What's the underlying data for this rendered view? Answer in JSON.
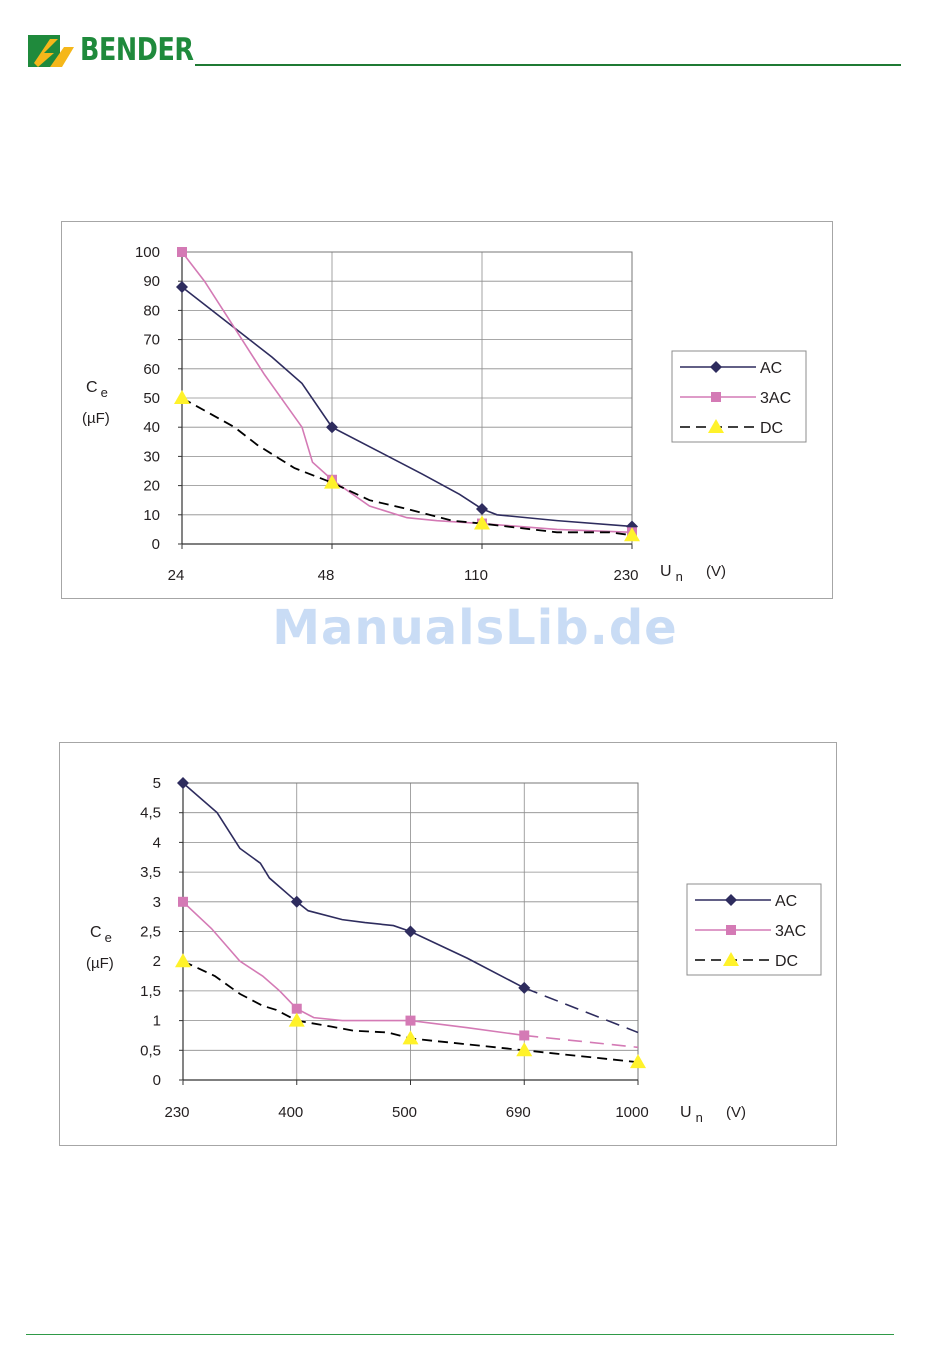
{
  "header": {
    "brand": "BENDER"
  },
  "watermark": "ManualsLib.de",
  "chart_data": [
    {
      "type": "line",
      "x": [
        "24",
        "48",
        "110",
        "230"
      ],
      "ylabel": "C e",
      "yunit": "(µF)",
      "xlabel": "U n",
      "xunit": "(V)",
      "ylim": [
        0,
        100
      ],
      "yticks": [
        "0",
        "10",
        "20",
        "30",
        "40",
        "50",
        "60",
        "70",
        "80",
        "90",
        "100"
      ],
      "grid": true,
      "legend_position": "right",
      "series": [
        {
          "name": "AC",
          "marker": "diamond",
          "color": "#2e2c5e",
          "dash": "solid",
          "values": [
            88,
            40,
            12,
            6
          ],
          "curve": [
            [
              0,
              88
            ],
            [
              0.2,
              80
            ],
            [
              0.4,
              72
            ],
            [
              0.6,
              64
            ],
            [
              0.8,
              55
            ],
            [
              1,
              40
            ],
            [
              1.3,
              32
            ],
            [
              1.6,
              24
            ],
            [
              1.85,
              17
            ],
            [
              2,
              12
            ],
            [
              2.1,
              10
            ],
            [
              2.5,
              8
            ],
            [
              3,
              6
            ]
          ]
        },
        {
          "name": "3AC",
          "marker": "square",
          "color": "#d47ab5",
          "dash": "solid",
          "values": [
            100,
            22,
            7,
            4
          ],
          "curve": [
            [
              0,
              100
            ],
            [
              0.15,
              90
            ],
            [
              0.3,
              78
            ],
            [
              0.55,
              58
            ],
            [
              0.8,
              40
            ],
            [
              0.87,
              28
            ],
            [
              1,
              22
            ],
            [
              1.25,
              13
            ],
            [
              1.5,
              9
            ],
            [
              1.7,
              8
            ],
            [
              2,
              7
            ],
            [
              2.5,
              5
            ],
            [
              3,
              4
            ]
          ]
        },
        {
          "name": "DC",
          "marker": "triangle",
          "color": "#000000",
          "dash": "dashed",
          "values": [
            50,
            21,
            7,
            3
          ],
          "curve": [
            [
              0,
              50
            ],
            [
              0.35,
              40
            ],
            [
              0.5,
              34
            ],
            [
              0.75,
              26
            ],
            [
              1,
              21
            ],
            [
              1.25,
              15
            ],
            [
              1.5,
              12
            ],
            [
              1.8,
              8
            ],
            [
              2,
              7
            ],
            [
              2.5,
              4
            ],
            [
              2.85,
              4
            ],
            [
              3,
              3
            ]
          ]
        }
      ]
    },
    {
      "type": "line",
      "x": [
        "230",
        "400",
        "500",
        "690",
        "1000"
      ],
      "ylabel": "C e",
      "yunit": "(µF)",
      "xlabel": "U n",
      "xunit": "(V)",
      "ylim": [
        0,
        5
      ],
      "yticks": [
        "0",
        "0,5",
        "1",
        "1,5",
        "2",
        "2,5",
        "3",
        "3,5",
        "4",
        "4,5",
        "5"
      ],
      "grid": true,
      "legend_position": "right",
      "series": [
        {
          "name": "AC",
          "marker": "diamond",
          "color": "#2e2c5e",
          "dash": "solid",
          "values": [
            5,
            3,
            2.5,
            1.55,
            null
          ],
          "curve": [
            [
              0,
              5
            ],
            [
              0.3,
              4.5
            ],
            [
              0.5,
              3.9
            ],
            [
              0.68,
              3.65
            ],
            [
              0.76,
              3.4
            ],
            [
              1,
              3
            ],
            [
              1.1,
              2.85
            ],
            [
              1.4,
              2.7
            ],
            [
              1.6,
              2.65
            ],
            [
              1.85,
              2.6
            ],
            [
              2,
              2.5
            ],
            [
              2.5,
              2.05
            ],
            [
              3,
              1.55
            ]
          ],
          "extension": [
            [
              3,
              1.55
            ],
            [
              4,
              0.8
            ]
          ]
        },
        {
          "name": "3AC",
          "marker": "square",
          "color": "#d47ab5",
          "dash": "solid",
          "values": [
            3,
            1.2,
            1,
            0.75,
            null
          ],
          "curve": [
            [
              0,
              3
            ],
            [
              0.25,
              2.55
            ],
            [
              0.5,
              2
            ],
            [
              0.7,
              1.75
            ],
            [
              0.85,
              1.5
            ],
            [
              1,
              1.2
            ],
            [
              1.15,
              1.05
            ],
            [
              1.4,
              1
            ],
            [
              2,
              1
            ],
            [
              2.5,
              0.88
            ],
            [
              3,
              0.75
            ]
          ],
          "extension": [
            [
              3,
              0.75
            ],
            [
              4,
              0.55
            ]
          ]
        },
        {
          "name": "DC",
          "marker": "triangle",
          "color": "#000000",
          "dash": "dashed",
          "values": [
            2,
            1,
            0.7,
            0.5,
            0.3
          ],
          "curve": [
            [
              0,
              2
            ],
            [
              0.28,
              1.75
            ],
            [
              0.5,
              1.45
            ],
            [
              0.7,
              1.25
            ],
            [
              0.82,
              1.18
            ],
            [
              1,
              1
            ],
            [
              1.3,
              0.9
            ],
            [
              1.5,
              0.83
            ],
            [
              1.8,
              0.8
            ],
            [
              2,
              0.7
            ],
            [
              2.5,
              0.6
            ],
            [
              3,
              0.5
            ],
            [
              3.5,
              0.4
            ],
            [
              4,
              0.3
            ]
          ]
        }
      ]
    }
  ]
}
